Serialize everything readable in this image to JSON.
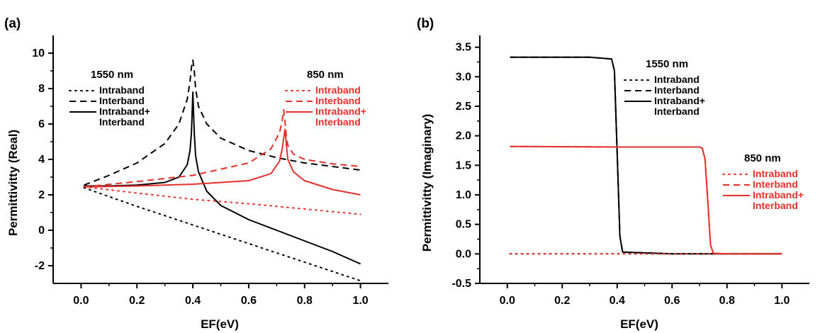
{
  "chart_data": [
    {
      "type": "line",
      "panel_label": "(a)",
      "xlabel": "EF(eV)",
      "ylabel": "Permittivitty (Real)",
      "xlim": [
        -0.1,
        1.1
      ],
      "ylim": [
        -3,
        11
      ],
      "xticks": [
        0.0,
        0.2,
        0.4,
        0.6,
        0.8,
        1.0
      ],
      "xtick_labels": [
        "0.0",
        "0.2",
        "0.4",
        "0.6",
        "0.8",
        "1.0"
      ],
      "yticks": [
        -2,
        0,
        2,
        4,
        6,
        8,
        10
      ],
      "ytick_labels": [
        "-2",
        "0",
        "2",
        "4",
        "6",
        "8",
        "10"
      ],
      "grid": false,
      "legend_groups": [
        {
          "title": "1550 nm",
          "color": "#000000",
          "entries": [
            "Intraband",
            "Interband",
            "Intraband+",
            "Interband"
          ],
          "placement": "top-left"
        },
        {
          "title": "850 nm",
          "color": "#e8302a",
          "entries": [
            "Intraband",
            "Interband",
            "Intraband+",
            "Interband"
          ],
          "placement": "top-right"
        }
      ],
      "series": [
        {
          "group": "1550 nm",
          "style": "dotted",
          "color": "#000000",
          "x": [
            0.01,
            0.2,
            0.4,
            0.6,
            0.8,
            1.0
          ],
          "y": [
            2.4,
            1.35,
            0.3,
            -0.75,
            -1.8,
            -2.85
          ]
        },
        {
          "group": "1550 nm",
          "style": "dashed",
          "color": "#000000",
          "x": [
            0.01,
            0.1,
            0.2,
            0.3,
            0.35,
            0.38,
            0.39,
            0.395,
            0.4,
            0.405,
            0.41,
            0.42,
            0.45,
            0.5,
            0.6,
            0.7,
            0.8,
            0.9,
            1.0
          ],
          "y": [
            2.55,
            3.1,
            3.8,
            4.9,
            6.0,
            7.4,
            8.4,
            9.2,
            9.6,
            9.0,
            8.0,
            7.0,
            6.0,
            5.2,
            4.5,
            4.1,
            3.8,
            3.6,
            3.4
          ]
        },
        {
          "group": "1550 nm",
          "style": "solid",
          "color": "#000000",
          "x": [
            0.01,
            0.1,
            0.2,
            0.3,
            0.35,
            0.38,
            0.39,
            0.395,
            0.4,
            0.405,
            0.41,
            0.42,
            0.45,
            0.5,
            0.6,
            0.7,
            0.8,
            0.9,
            1.0
          ],
          "y": [
            2.5,
            2.5,
            2.55,
            2.7,
            3.0,
            3.7,
            4.5,
            5.5,
            7.8,
            5.5,
            4.2,
            3.3,
            2.2,
            1.4,
            0.6,
            0.0,
            -0.6,
            -1.2,
            -1.9
          ]
        },
        {
          "group": "850 nm",
          "style": "dotted",
          "color": "#e8302a",
          "x": [
            0.01,
            0.2,
            0.4,
            0.6,
            0.8,
            1.0
          ],
          "y": [
            2.45,
            2.1,
            1.75,
            1.5,
            1.2,
            0.9
          ]
        },
        {
          "group": "850 nm",
          "style": "dashed",
          "color": "#e8302a",
          "x": [
            0.01,
            0.2,
            0.4,
            0.6,
            0.68,
            0.71,
            0.72,
            0.725,
            0.73,
            0.735,
            0.74,
            0.76,
            0.8,
            0.9,
            1.0
          ],
          "y": [
            2.45,
            2.75,
            3.1,
            3.8,
            4.6,
            5.5,
            6.2,
            6.8,
            6.1,
            5.3,
            4.8,
            4.3,
            4.0,
            3.75,
            3.6
          ]
        },
        {
          "group": "850 nm",
          "style": "solid",
          "color": "#e8302a",
          "x": [
            0.01,
            0.2,
            0.4,
            0.6,
            0.68,
            0.71,
            0.72,
            0.725,
            0.73,
            0.735,
            0.74,
            0.76,
            0.8,
            0.9,
            1.0
          ],
          "y": [
            2.45,
            2.5,
            2.6,
            2.8,
            3.2,
            3.9,
            4.6,
            5.2,
            5.7,
            4.8,
            4.0,
            3.3,
            2.8,
            2.3,
            2.0
          ]
        }
      ]
    },
    {
      "type": "line",
      "panel_label": "(b)",
      "xlabel": "EF(eV)",
      "ylabel": "Permittivitty (Imaginary)",
      "xlim": [
        -0.1,
        1.1
      ],
      "ylim": [
        -0.5,
        3.7
      ],
      "xticks": [
        0.0,
        0.2,
        0.4,
        0.6,
        0.8,
        1.0
      ],
      "xtick_labels": [
        "0.0",
        "0.2",
        "0.4",
        "0.6",
        "0.8",
        "1.0"
      ],
      "yticks": [
        -0.5,
        0.0,
        0.5,
        1.0,
        1.5,
        2.0,
        2.5,
        3.0,
        3.5
      ],
      "ytick_labels": [
        "-0.5",
        "0.0",
        "0.5",
        "1.0",
        "1.5",
        "2.0",
        "2.5",
        "3.0",
        "3.5"
      ],
      "grid": false,
      "legend_groups": [
        {
          "title": "1550 nm",
          "color": "#000000",
          "entries": [
            "Intraband",
            "Interband",
            "Intraband+",
            "Interband"
          ],
          "placement": "top-center"
        },
        {
          "title": "850 nm",
          "color": "#e8302a",
          "entries": [
            "Intraband",
            "Interband",
            "Intraband+",
            "Interband"
          ],
          "placement": "right"
        }
      ],
      "series": [
        {
          "group": "1550 nm",
          "style": "dotted",
          "color": "#000000",
          "x": [
            0.01,
            0.2,
            0.4,
            0.6,
            0.8,
            1.0
          ],
          "y": [
            0.0,
            0.0,
            0.0,
            0.0,
            0.0,
            0.0
          ]
        },
        {
          "group": "1550 nm",
          "style": "dashed",
          "color": "#000000",
          "x": [
            0.01,
            0.3,
            0.38,
            0.39,
            0.4,
            0.41,
            0.42,
            0.6,
            0.8,
            1.0
          ],
          "y": [
            3.33,
            3.33,
            3.3,
            3.1,
            1.7,
            0.3,
            0.03,
            0.0,
            0.0,
            0.0
          ]
        },
        {
          "group": "1550 nm",
          "style": "solid",
          "color": "#000000",
          "x": [
            0.01,
            0.3,
            0.38,
            0.39,
            0.4,
            0.41,
            0.42,
            0.6,
            0.8,
            1.0
          ],
          "y": [
            3.33,
            3.33,
            3.3,
            3.1,
            1.7,
            0.3,
            0.03,
            0.0,
            0.0,
            0.0
          ]
        },
        {
          "group": "850 nm",
          "style": "dotted",
          "color": "#e8302a",
          "x": [
            0.01,
            0.2,
            0.4,
            0.6,
            0.8,
            1.0
          ],
          "y": [
            0.0,
            0.0,
            0.0,
            0.0,
            0.0,
            0.0
          ]
        },
        {
          "group": "850 nm",
          "style": "dashed",
          "color": "#e8302a",
          "x": [
            0.01,
            0.4,
            0.7,
            0.71,
            0.72,
            0.73,
            0.74,
            0.75,
            0.8,
            1.0
          ],
          "y": [
            1.82,
            1.81,
            1.81,
            1.79,
            1.6,
            0.9,
            0.15,
            0.01,
            0.0,
            0.0
          ]
        },
        {
          "group": "850 nm",
          "style": "solid",
          "color": "#e8302a",
          "x": [
            0.01,
            0.4,
            0.7,
            0.71,
            0.72,
            0.73,
            0.74,
            0.75,
            0.8,
            1.0
          ],
          "y": [
            1.82,
            1.81,
            1.81,
            1.79,
            1.6,
            0.9,
            0.15,
            0.01,
            0.0,
            0.0
          ]
        }
      ]
    }
  ]
}
